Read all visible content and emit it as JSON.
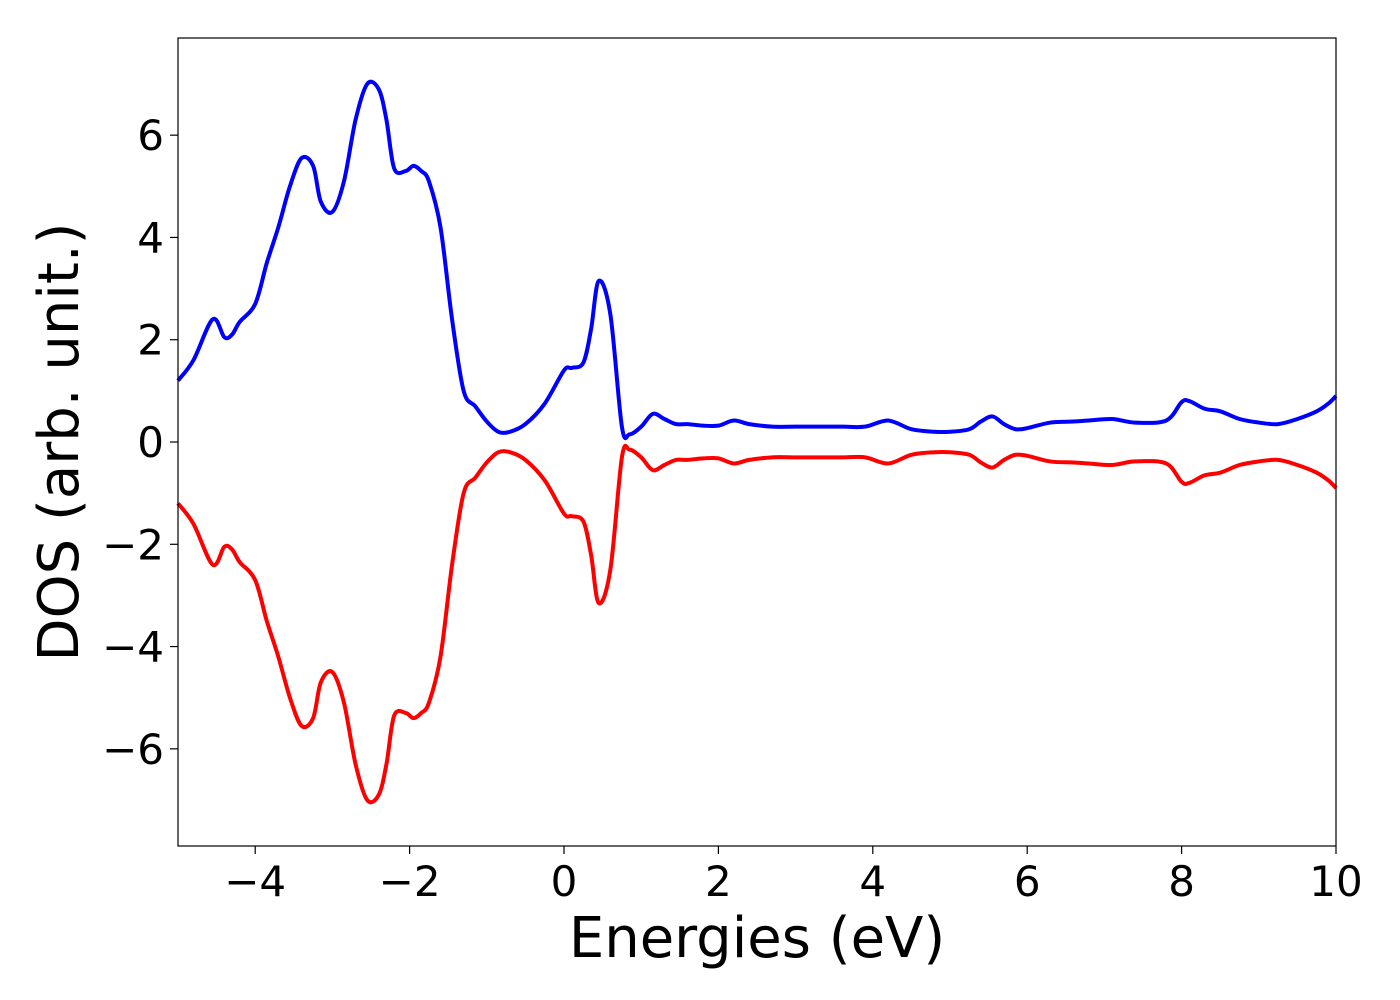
{
  "chart_data": {
    "type": "line",
    "title": "",
    "xlabel": "Energies (eV)",
    "ylabel": "DOS (arb. unit.)",
    "xlim": [
      -5,
      10
    ],
    "ylim": [
      -7.9,
      7.9
    ],
    "grid": false,
    "x_ticks": [
      -4,
      -2,
      0,
      2,
      4,
      6,
      8,
      10
    ],
    "x_tick_labels": [
      "−4",
      "−2",
      "0",
      "2",
      "4",
      "6",
      "8",
      "10"
    ],
    "y_ticks": [
      -6,
      -4,
      -2,
      0,
      2,
      4,
      6
    ],
    "y_tick_labels": [
      "−6",
      "−4",
      "−2",
      "0",
      "2",
      "4",
      "6"
    ],
    "series": [
      {
        "color": "#0000ff",
        "x": [
          -5.0,
          -4.8,
          -4.55,
          -4.4,
          -4.3,
          -4.2,
          -4.0,
          -3.85,
          -3.7,
          -3.55,
          -3.4,
          -3.25,
          -3.15,
          -3.0,
          -2.85,
          -2.7,
          -2.55,
          -2.4,
          -2.3,
          -2.2,
          -2.05,
          -1.95,
          -1.85,
          -1.75,
          -1.6,
          -1.45,
          -1.3,
          -1.15,
          -1.0,
          -0.85,
          -0.7,
          -0.5,
          -0.25,
          0.0,
          0.1,
          0.25,
          0.35,
          0.45,
          0.6,
          0.75,
          0.85,
          1.0,
          1.15,
          1.3,
          1.45,
          1.6,
          1.8,
          2.0,
          2.2,
          2.4,
          2.7,
          3.0,
          3.3,
          3.6,
          3.9,
          4.2,
          4.5,
          4.8,
          5.0,
          5.25,
          5.4,
          5.55,
          5.7,
          5.85,
          6.0,
          6.3,
          6.6,
          6.8,
          7.1,
          7.4,
          7.8,
          8.0,
          8.1,
          8.3,
          8.5,
          8.75,
          9.0,
          9.25,
          9.5,
          9.75,
          9.9,
          10.0
        ],
        "values": [
          1.2,
          1.6,
          2.4,
          2.05,
          2.1,
          2.35,
          2.7,
          3.5,
          4.2,
          5.0,
          5.55,
          5.4,
          4.7,
          4.5,
          5.1,
          6.3,
          7.0,
          6.9,
          6.3,
          5.35,
          5.3,
          5.4,
          5.3,
          5.1,
          4.2,
          2.4,
          1.0,
          0.7,
          0.4,
          0.2,
          0.2,
          0.35,
          0.75,
          1.4,
          1.45,
          1.55,
          2.2,
          3.15,
          2.5,
          0.3,
          0.15,
          0.3,
          0.55,
          0.45,
          0.35,
          0.35,
          0.32,
          0.32,
          0.42,
          0.35,
          0.3,
          0.3,
          0.3,
          0.3,
          0.3,
          0.42,
          0.25,
          0.2,
          0.2,
          0.25,
          0.4,
          0.5,
          0.35,
          0.25,
          0.27,
          0.38,
          0.4,
          0.42,
          0.45,
          0.38,
          0.42,
          0.78,
          0.8,
          0.65,
          0.6,
          0.45,
          0.38,
          0.35,
          0.45,
          0.6,
          0.75,
          0.9
        ]
      },
      {
        "color": "#ff0000",
        "x": [
          -5.0,
          -4.8,
          -4.55,
          -4.4,
          -4.3,
          -4.2,
          -4.0,
          -3.85,
          -3.7,
          -3.55,
          -3.4,
          -3.25,
          -3.15,
          -3.0,
          -2.85,
          -2.7,
          -2.55,
          -2.4,
          -2.3,
          -2.2,
          -2.05,
          -1.95,
          -1.85,
          -1.75,
          -1.6,
          -1.45,
          -1.3,
          -1.15,
          -1.0,
          -0.85,
          -0.7,
          -0.5,
          -0.25,
          0.0,
          0.1,
          0.25,
          0.35,
          0.45,
          0.6,
          0.75,
          0.85,
          1.0,
          1.15,
          1.3,
          1.45,
          1.6,
          1.8,
          2.0,
          2.2,
          2.4,
          2.7,
          3.0,
          3.3,
          3.6,
          3.9,
          4.2,
          4.5,
          4.8,
          5.0,
          5.25,
          5.4,
          5.55,
          5.7,
          5.85,
          6.0,
          6.3,
          6.6,
          6.8,
          7.1,
          7.4,
          7.8,
          8.0,
          8.1,
          8.3,
          8.5,
          8.75,
          9.0,
          9.25,
          9.5,
          9.75,
          9.9,
          10.0
        ],
        "values": [
          -1.2,
          -1.6,
          -2.4,
          -2.05,
          -2.1,
          -2.35,
          -2.7,
          -3.5,
          -4.2,
          -5.0,
          -5.55,
          -5.4,
          -4.7,
          -4.5,
          -5.1,
          -6.3,
          -7.0,
          -6.9,
          -6.3,
          -5.35,
          -5.3,
          -5.4,
          -5.3,
          -5.1,
          -4.2,
          -2.4,
          -1.0,
          -0.7,
          -0.4,
          -0.2,
          -0.2,
          -0.35,
          -0.75,
          -1.4,
          -1.45,
          -1.55,
          -2.2,
          -3.15,
          -2.5,
          -0.3,
          -0.15,
          -0.3,
          -0.55,
          -0.45,
          -0.35,
          -0.35,
          -0.32,
          -0.32,
          -0.42,
          -0.35,
          -0.3,
          -0.3,
          -0.3,
          -0.3,
          -0.3,
          -0.42,
          -0.25,
          -0.2,
          -0.2,
          -0.25,
          -0.4,
          -0.5,
          -0.35,
          -0.25,
          -0.27,
          -0.38,
          -0.4,
          -0.42,
          -0.45,
          -0.38,
          -0.42,
          -0.78,
          -0.8,
          -0.65,
          -0.6,
          -0.45,
          -0.38,
          -0.35,
          -0.45,
          -0.6,
          -0.75,
          -0.9
        ]
      }
    ]
  }
}
